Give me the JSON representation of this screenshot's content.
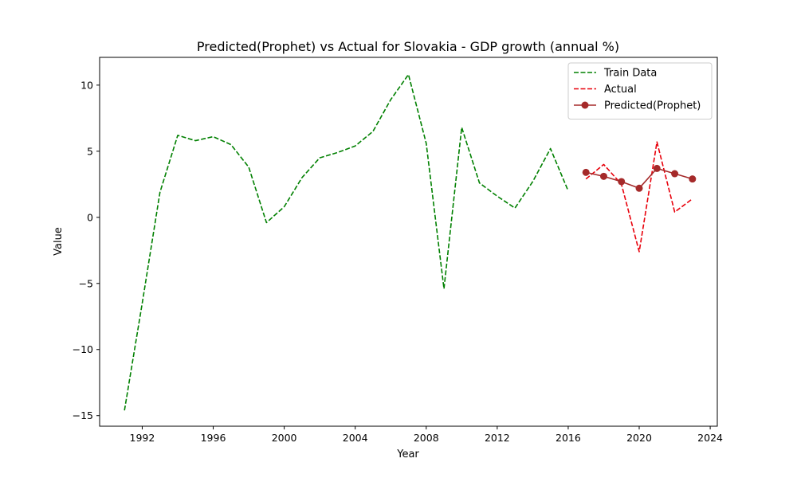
{
  "chart_data": {
    "type": "line",
    "title": "Predicted(Prophet) vs Actual for Slovakia - GDP growth (annual %)",
    "xlabel": "Year",
    "ylabel": "Value",
    "xlim": [
      1989.6,
      2024.4
    ],
    "ylim": [
      -15.8,
      12.1
    ],
    "xticks": [
      1992,
      1996,
      2000,
      2004,
      2008,
      2012,
      2016,
      2020,
      2024
    ],
    "yticks": [
      -15,
      -10,
      -5,
      0,
      5,
      10
    ],
    "ytick_labels": [
      "−15",
      "−10",
      "−5",
      "0",
      "5",
      "10"
    ],
    "grid": false,
    "legend_position": "top-right",
    "series": [
      {
        "name": "Train Data",
        "color": "#008000",
        "style": "dashed",
        "marker": "none",
        "x": [
          1991,
          1992,
          1993,
          1994,
          1995,
          1996,
          1997,
          1998,
          1999,
          2000,
          2001,
          2002,
          2003,
          2004,
          2005,
          2006,
          2007,
          2008,
          2009,
          2010,
          2011,
          2012,
          2013,
          2014,
          2015,
          2016
        ],
        "y": [
          -14.6,
          -6.5,
          1.9,
          6.2,
          5.8,
          6.1,
          5.5,
          3.8,
          -0.4,
          0.8,
          3.0,
          4.5,
          4.9,
          5.4,
          6.5,
          8.9,
          10.8,
          5.6,
          -5.4,
          6.8,
          2.6,
          1.6,
          0.7,
          2.7,
          5.2,
          2.0
        ]
      },
      {
        "name": "Actual",
        "color": "#e8000b",
        "style": "dashed",
        "marker": "none",
        "x": [
          2017,
          2018,
          2019,
          2020,
          2021,
          2022,
          2023
        ],
        "y": [
          2.9,
          4.0,
          2.5,
          -2.6,
          5.7,
          0.4,
          1.4
        ]
      },
      {
        "name": "Predicted(Prophet)",
        "color": "#a52a2a",
        "style": "solid",
        "marker": "circle",
        "x": [
          2017,
          2018,
          2019,
          2020,
          2021,
          2022,
          2023
        ],
        "y": [
          3.4,
          3.1,
          2.7,
          2.2,
          3.7,
          3.3,
          2.9
        ]
      }
    ]
  }
}
